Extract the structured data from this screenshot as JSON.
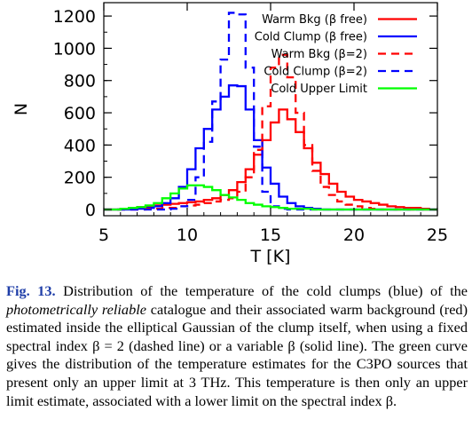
{
  "chart_data": {
    "type": "line",
    "title": "",
    "xlabel": "T [K]",
    "ylabel": "N",
    "xlim": [
      5,
      25
    ],
    "ylim": [
      0,
      1300
    ],
    "xticks": [
      "5",
      "10",
      "15",
      "20",
      "25"
    ],
    "yticks": [
      "0",
      "200",
      "400",
      "600",
      "800",
      "1000",
      "1200"
    ],
    "bin_edges": [
      5.0,
      5.5,
      6.0,
      6.5,
      7.0,
      7.5,
      8.0,
      8.5,
      9.0,
      9.5,
      10.0,
      10.5,
      11.0,
      11.5,
      12.0,
      12.5,
      13.0,
      13.5,
      14.0,
      14.5,
      15.0,
      15.5,
      16.0,
      16.5,
      17.0,
      17.5,
      18.0,
      18.5,
      19.0,
      19.5,
      20.0,
      20.5,
      21.0,
      21.5,
      22.0,
      22.5,
      23.0,
      23.5,
      24.0,
      24.5,
      25.0
    ],
    "legend_position": "top-right",
    "series": [
      {
        "name": "Warm Bkg (β free)",
        "color": "#ff0000",
        "dash": "solid",
        "values": [
          0,
          0,
          5,
          10,
          15,
          20,
          25,
          30,
          35,
          40,
          45,
          50,
          60,
          70,
          90,
          120,
          170,
          250,
          340,
          430,
          540,
          620,
          560,
          480,
          380,
          290,
          220,
          160,
          110,
          80,
          60,
          50,
          40,
          30,
          20,
          15,
          10,
          10,
          5,
          0
        ]
      },
      {
        "name": "Cold Clump (β free)",
        "color": "#0000ff",
        "dash": "solid",
        "values": [
          0,
          0,
          0,
          0,
          5,
          10,
          20,
          40,
          70,
          140,
          250,
          380,
          500,
          620,
          700,
          770,
          765,
          620,
          430,
          260,
          160,
          80,
          40,
          20,
          10,
          5,
          0,
          0,
          0,
          0,
          0,
          0,
          0,
          0,
          0,
          0,
          0,
          0,
          0,
          0
        ]
      },
      {
        "name": "Warm Bkg (β=2)",
        "color": "#ff0000",
        "dash": "dashed",
        "values": [
          0,
          0,
          0,
          0,
          0,
          5,
          5,
          10,
          10,
          20,
          25,
          30,
          40,
          50,
          60,
          70,
          110,
          200,
          370,
          640,
          880,
          960,
          820,
          600,
          400,
          240,
          140,
          90,
          50,
          30,
          20,
          10,
          5,
          0,
          0,
          0,
          0,
          0,
          0,
          0
        ]
      },
      {
        "name": "Cold Clump (β=2)",
        "color": "#0000ff",
        "dash": "dashed",
        "values": [
          0,
          0,
          0,
          0,
          0,
          0,
          0,
          0,
          5,
          20,
          60,
          200,
          420,
          670,
          930,
          1220,
          1210,
          880,
          390,
          110,
          20,
          5,
          0,
          0,
          0,
          0,
          0,
          0,
          0,
          0,
          0,
          0,
          0,
          0,
          0,
          0,
          0,
          0,
          0,
          0
        ]
      },
      {
        "name": "Cold Upper Limit",
        "color": "#00ff00",
        "dash": "solid",
        "values": [
          0,
          0,
          5,
          10,
          15,
          25,
          40,
          70,
          100,
          130,
          150,
          150,
          140,
          120,
          90,
          75,
          60,
          40,
          30,
          20,
          15,
          10,
          5,
          5,
          5,
          0,
          0,
          0,
          0,
          0,
          0,
          0,
          0,
          0,
          0,
          0,
          0,
          0,
          0,
          0
        ]
      }
    ]
  },
  "caption": {
    "label": "Fig. 13.",
    "text_1": " Distribution of the temperature of the cold clumps (blue) of the ",
    "emphasis": "photometrically reliable",
    "text_2": " catalogue and their associated warm background (red) estimated inside the elliptical Gaussian of the clump itself, when using a fixed spectral index β = 2 (dashed line) or a variable β (solid line). The green curve gives the distribution of the temperature estimates for the C3PO sources that present only an upper limit at 3 THz. This temperature is then only an upper limit estimate, associated with a lower limit on the spectral index β."
  }
}
